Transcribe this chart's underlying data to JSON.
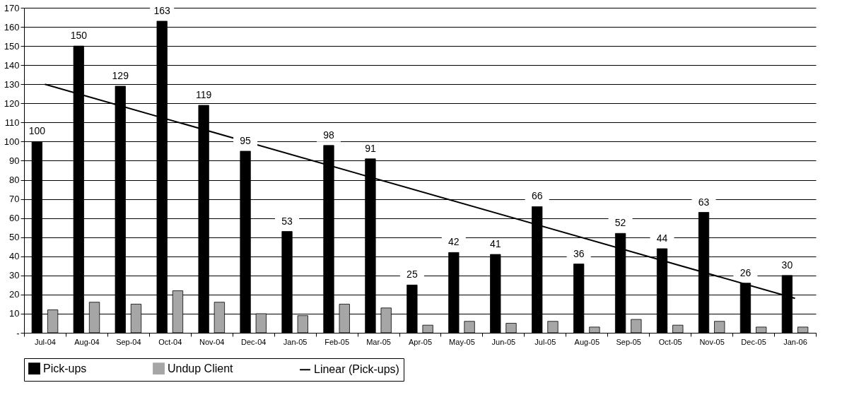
{
  "chart_data": {
    "type": "bar",
    "categories": [
      "Jul-04",
      "Aug-04",
      "Sep-04",
      "Oct-04",
      "Nov-04",
      "Dec-04",
      "Jan-05",
      "Feb-05",
      "Mar-05",
      "Apr-05",
      "May-05",
      "Jun-05",
      "Jul-05",
      "Aug-05",
      "Sep-05",
      "Oct-05",
      "Nov-05",
      "Dec-05",
      "Jan-06"
    ],
    "series": [
      {
        "name": "Pick-ups",
        "color": "#000000",
        "values": [
          100,
          150,
          129,
          163,
          119,
          95,
          53,
          98,
          91,
          25,
          42,
          41,
          66,
          36,
          52,
          44,
          63,
          26,
          30
        ],
        "value_labels": [
          "100",
          "150",
          "129",
          "163",
          "119",
          "95",
          "53",
          "98",
          "91",
          "25",
          "42",
          "41",
          "66",
          "36",
          "52",
          "44",
          "63",
          "26",
          "30"
        ]
      },
      {
        "name": "Undup Client",
        "color": "#a6a6a6",
        "values": [
          12,
          16,
          15,
          22,
          16,
          10,
          9,
          15,
          13,
          4,
          6,
          5,
          6,
          3,
          7,
          4,
          6,
          3,
          3
        ]
      },
      {
        "name": "Linear (Pick-ups)",
        "type": "line",
        "color": "#000000",
        "x": [
          "Jul-04",
          "Jan-06"
        ],
        "values": [
          130,
          18
        ]
      }
    ],
    "ylim": [
      0,
      170
    ],
    "yticks": [
      {
        "value": 0,
        "label": "-"
      },
      10,
      20,
      30,
      40,
      50,
      60,
      70,
      80,
      90,
      100,
      110,
      120,
      130,
      140,
      150,
      160,
      170
    ],
    "grid": "y",
    "legend": "bottom"
  }
}
